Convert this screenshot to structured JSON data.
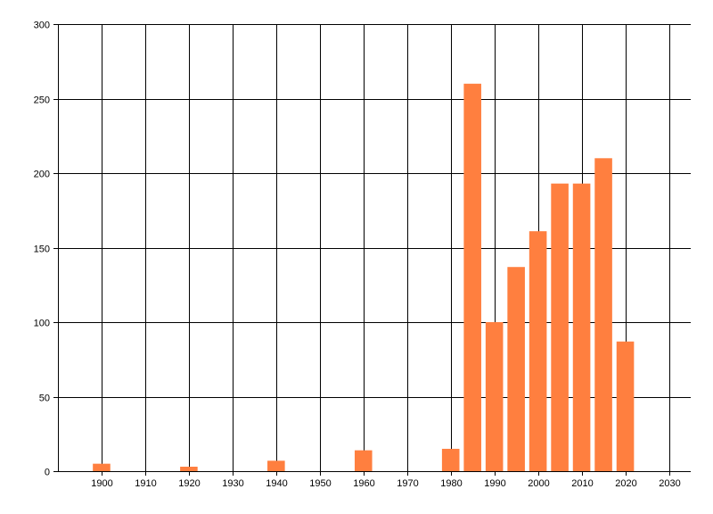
{
  "chart_data": {
    "type": "bar",
    "title": "",
    "xlabel": "",
    "ylabel": "",
    "x": [
      1900,
      1920,
      1940,
      1960,
      1980,
      1985,
      1990,
      1995,
      2000,
      2005,
      2010,
      2015,
      2020
    ],
    "values": [
      5,
      3,
      7,
      14,
      15,
      260,
      100,
      137,
      161,
      193,
      193,
      210,
      87
    ],
    "xlim": [
      1890,
      2035
    ],
    "ylim": [
      0,
      300
    ],
    "x_ticks": [
      1900,
      1910,
      1920,
      1930,
      1940,
      1950,
      1960,
      1970,
      1980,
      1990,
      2000,
      2010,
      2020,
      2030
    ],
    "y_ticks": [
      0,
      50,
      100,
      150,
      200,
      250,
      300
    ],
    "bar_width_years": 4,
    "grid": true,
    "legend": "none",
    "bar_color": "#ff7f3f",
    "grid_color": "#000000"
  }
}
